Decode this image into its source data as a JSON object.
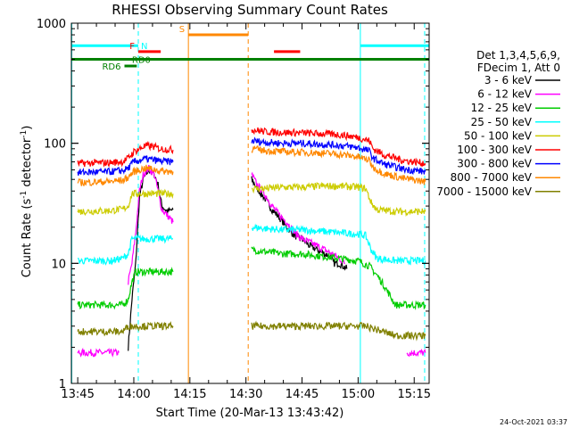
{
  "chart_data": {
    "type": "line",
    "title": "RHESSI Observing Summary Count Rates",
    "xlabel": "Start Time (20-Mar-13 13:43:42)",
    "ylabel_parts": [
      "Count Rate (s",
      "-1",
      " detector",
      "-1",
      ")"
    ],
    "x_range_minutes_after_1345": [
      -1.7,
      94
    ],
    "y_range": [
      1,
      1000
    ],
    "y_scale": "log",
    "x_ticks": [
      {
        "minute": 0,
        "label": "13:45"
      },
      {
        "minute": 15,
        "label": "14:00"
      },
      {
        "minute": 30,
        "label": "14:15"
      },
      {
        "minute": 45,
        "label": "14:30"
      },
      {
        "minute": 60,
        "label": "14:45"
      },
      {
        "minute": 75,
        "label": "15:00"
      },
      {
        "minute": 90,
        "label": "15:15"
      }
    ],
    "y_ticks": [
      {
        "value": 1,
        "label": "1"
      },
      {
        "value": 10,
        "label": "10"
      },
      {
        "value": 100,
        "label": "100"
      },
      {
        "value": 1000,
        "label": "1000"
      }
    ],
    "legend_header": [
      "Det 1,3,4,5,6,9,",
      "FDecim 1, Att 0"
    ],
    "series": [
      {
        "name": "3 - 6 keV",
        "color": "#000000",
        "segments": [
          [
            [
              13.5,
              2
            ],
            [
              14.5,
              5
            ],
            [
              15.5,
              10
            ],
            [
              16.5,
              35
            ],
            [
              17.5,
              50
            ],
            [
              19,
              60
            ],
            [
              20.5,
              55
            ],
            [
              21.5,
              45
            ],
            [
              22.5,
              30
            ],
            [
              24,
              27
            ],
            [
              25.5,
              28
            ]
          ],
          [
            [
              46.5,
              50
            ],
            [
              48,
              42
            ],
            [
              50,
              35
            ],
            [
              52,
              28
            ],
            [
              54,
              24
            ],
            [
              56,
              20
            ],
            [
              58,
              17
            ],
            [
              60,
              16
            ],
            [
              62,
              14
            ],
            [
              64,
              13
            ],
            [
              66,
              12
            ],
            [
              67.5,
              11.5
            ],
            [
              68.5,
              10
            ],
            [
              70,
              10
            ],
            [
              72,
              9
            ]
          ]
        ]
      },
      {
        "name": "6 - 12 keV",
        "color": "#ff00ff",
        "segments": [
          [
            [
              0,
              1.8
            ],
            [
              9,
              1.8
            ],
            [
              11,
              1.8
            ]
          ],
          [
            [
              13.5,
              7
            ],
            [
              14.5,
              10
            ],
            [
              15.5,
              18
            ],
            [
              16.5,
              40
            ],
            [
              17.5,
              55
            ],
            [
              19,
              62
            ],
            [
              20.5,
              55
            ],
            [
              21.5,
              40
            ],
            [
              22.5,
              28
            ],
            [
              24,
              25
            ],
            [
              25.5,
              22
            ]
          ],
          [
            [
              46.5,
              55
            ],
            [
              48,
              45
            ],
            [
              50,
              38
            ],
            [
              52,
              30
            ],
            [
              54,
              25
            ],
            [
              56,
              22
            ],
            [
              58,
              18
            ],
            [
              60,
              16
            ],
            [
              62,
              15
            ],
            [
              64,
              14
            ],
            [
              66,
              13
            ],
            [
              68,
              12
            ],
            [
              70,
              11
            ],
            [
              71.5,
              10
            ]
          ],
          [
            [
              88,
              1.8
            ],
            [
              93,
              1.8
            ]
          ]
        ]
      },
      {
        "name": "12 - 25 keV",
        "color": "#00cc00",
        "segments": [
          [
            [
              0,
              4.5
            ],
            [
              9,
              4.5
            ],
            [
              12,
              4.5
            ],
            [
              13.5,
              5
            ],
            [
              14.5,
              7
            ],
            [
              15.5,
              8.5
            ],
            [
              18,
              8.5
            ],
            [
              20.5,
              8.5
            ],
            [
              25.5,
              8.5
            ]
          ],
          [
            [
              46.5,
              13
            ],
            [
              50,
              12.5
            ],
            [
              55,
              12
            ],
            [
              60,
              12
            ],
            [
              65,
              11.5
            ],
            [
              70,
              11
            ],
            [
              75,
              10.5
            ],
            [
              78,
              9.5
            ],
            [
              80,
              8
            ],
            [
              82,
              6.5
            ],
            [
              85,
              4.5
            ],
            [
              93,
              4.5
            ]
          ]
        ]
      },
      {
        "name": "25 - 50 keV",
        "color": "#00ffff",
        "segments": [
          [
            [
              0,
              10.5
            ],
            [
              9,
              10.5
            ],
            [
              12,
              11
            ],
            [
              13.5,
              12
            ],
            [
              14.5,
              16
            ],
            [
              15.5,
              16
            ],
            [
              20,
              16
            ],
            [
              25.5,
              16
            ]
          ],
          [
            [
              46.5,
              20
            ],
            [
              50,
              19.5
            ],
            [
              55,
              19
            ],
            [
              60,
              19
            ],
            [
              65,
              18.5
            ],
            [
              70,
              18
            ],
            [
              75,
              17.5
            ],
            [
              77,
              17
            ],
            [
              78.5,
              13
            ],
            [
              80,
              11
            ],
            [
              85,
              10.5
            ],
            [
              93,
              10.5
            ]
          ]
        ]
      },
      {
        "name": "50 - 100 keV",
        "color": "#cccc00",
        "segments": [
          [
            [
              0,
              27
            ],
            [
              9,
              27.5
            ],
            [
              11,
              28
            ],
            [
              12,
              28
            ],
            [
              13.5,
              30
            ],
            [
              14.5,
              38
            ],
            [
              15.5,
              38
            ],
            [
              20,
              38
            ],
            [
              25.5,
              38
            ]
          ],
          [
            [
              46.5,
              42
            ],
            [
              50,
              42
            ],
            [
              55,
              43
            ],
            [
              60,
              43
            ],
            [
              65,
              44
            ],
            [
              70,
              44
            ],
            [
              75,
              43
            ],
            [
              77,
              42
            ],
            [
              78.5,
              32
            ],
            [
              80,
              28
            ],
            [
              85,
              27
            ],
            [
              93,
              27
            ]
          ]
        ]
      },
      {
        "name": "100 - 300 keV",
        "color": "#ff0000",
        "segments": [
          [
            [
              0,
              68
            ],
            [
              9,
              69
            ],
            [
              11,
              70
            ],
            [
              12,
              70
            ],
            [
              13.5,
              75
            ],
            [
              15,
              85
            ],
            [
              18,
              95
            ],
            [
              20,
              94
            ],
            [
              22,
              90
            ],
            [
              25.5,
              88
            ]
          ],
          [
            [
              46.5,
              130
            ],
            [
              50,
              125
            ],
            [
              55,
              123
            ],
            [
              60,
              122
            ],
            [
              65,
              120
            ],
            [
              70,
              118
            ],
            [
              75,
              112
            ],
            [
              78,
              105
            ],
            [
              79,
              90
            ],
            [
              82,
              80
            ],
            [
              87,
              72
            ],
            [
              93,
              68
            ]
          ]
        ]
      },
      {
        "name": "300 - 800 keV",
        "color": "#0000ff",
        "segments": [
          [
            [
              0,
              57
            ],
            [
              9,
              58
            ],
            [
              11,
              59
            ],
            [
              12,
              59
            ],
            [
              13.5,
              62
            ],
            [
              15,
              70
            ],
            [
              18,
              74
            ],
            [
              20,
              73
            ],
            [
              22,
              71
            ],
            [
              25.5,
              70
            ]
          ],
          [
            [
              46.5,
              105
            ],
            [
              50,
              102
            ],
            [
              55,
              100
            ],
            [
              60,
              100
            ],
            [
              65,
              98
            ],
            [
              70,
              96
            ],
            [
              75,
              92
            ],
            [
              78,
              86
            ],
            [
              79,
              75
            ],
            [
              82,
              67
            ],
            [
              87,
              61
            ],
            [
              93,
              58
            ]
          ]
        ]
      },
      {
        "name": "800 - 7000 keV",
        "color": "#ff8800",
        "segments": [
          [
            [
              0,
              47
            ],
            [
              9,
              48
            ],
            [
              11,
              49
            ],
            [
              12,
              49
            ],
            [
              13.5,
              52
            ],
            [
              15,
              58
            ],
            [
              18,
              62
            ],
            [
              20,
              61
            ],
            [
              22,
              59
            ],
            [
              25.5,
              58
            ]
          ],
          [
            [
              46.5,
              90
            ],
            [
              50,
              87
            ],
            [
              55,
              85
            ],
            [
              60,
              84
            ],
            [
              65,
              83
            ],
            [
              70,
              81
            ],
            [
              75,
              77
            ],
            [
              78,
              72
            ],
            [
              79,
              63
            ],
            [
              82,
              56
            ],
            [
              87,
              51
            ],
            [
              93,
              48
            ]
          ]
        ]
      },
      {
        "name": "7000 - 15000 keV",
        "color": "#808000",
        "segments": [
          [
            [
              0,
              2.7
            ],
            [
              9,
              2.7
            ],
            [
              12,
              2.7
            ],
            [
              13.5,
              3
            ],
            [
              15.5,
              3
            ],
            [
              25.5,
              3
            ]
          ],
          [
            [
              46.5,
              3
            ],
            [
              55,
              3
            ],
            [
              65,
              3
            ],
            [
              72,
              3
            ],
            [
              75,
              3
            ],
            [
              77,
              3
            ],
            [
              85,
              2.5
            ],
            [
              93,
              2.5
            ]
          ]
        ]
      }
    ],
    "vertical_lines": [
      {
        "minute": -1.6,
        "color": "#00ffff",
        "style": "solid"
      },
      {
        "minute": 16.2,
        "color": "#00ffff",
        "style": "dashed"
      },
      {
        "minute": 29.6,
        "color": "#ff8800",
        "style": "solid"
      },
      {
        "minute": 45.6,
        "color": "#ff8800",
        "style": "dashed"
      },
      {
        "minute": 75.6,
        "color": "#00ffff",
        "style": "solid"
      },
      {
        "minute": 92.8,
        "color": "#00ffff",
        "style": "dashed"
      }
    ],
    "flag_bars": [
      {
        "label": "N",
        "color": "#00ffff",
        "value": 650,
        "start": -1.7,
        "end": 16.2
      },
      {
        "label": "",
        "color": "#00ffff",
        "value": 650,
        "start": 75.6,
        "end": 94
      },
      {
        "label": "S",
        "color": "#ff8800",
        "value": 800,
        "start": 29.6,
        "end": 45.6
      },
      {
        "label": "F",
        "color": "#ff0000",
        "value": 580,
        "start": 16.2,
        "end": 22.2
      },
      {
        "label": "",
        "color": "#ff0000",
        "value": 580,
        "start": 52.5,
        "end": 59.5
      },
      {
        "label": "RD0",
        "color": "#008000",
        "value": 500,
        "start": -1.7,
        "end": 94
      },
      {
        "label": "RD6",
        "color": "#008000",
        "value": 440,
        "start": 12.5,
        "end": 15.8
      }
    ]
  },
  "timestamp": "24-Oct-2021 03:37"
}
